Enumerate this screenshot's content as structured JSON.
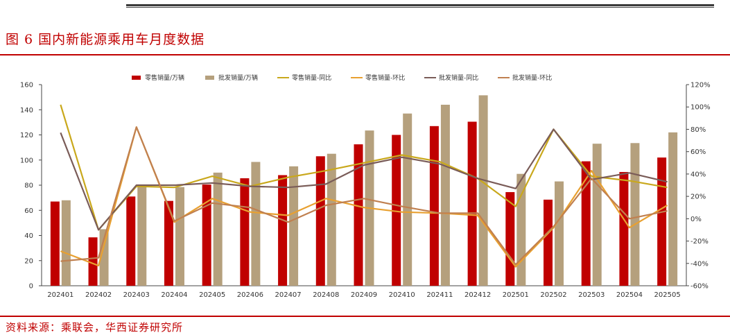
{
  "figure": {
    "title": "图 6 国内新能源乘用车月度数据",
    "source": "资料来源：乘联会，华西证券研究所"
  },
  "chart_data": {
    "type": "bar",
    "title": "",
    "categories": [
      "202401",
      "202402",
      "202403",
      "202404",
      "202405",
      "202406",
      "202407",
      "202408",
      "202409",
      "202410",
      "202411",
      "202412",
      "202501",
      "202502",
      "202503",
      "202504",
      "202505"
    ],
    "y_left": {
      "min": 0,
      "max": 160,
      "ticks": [
        0,
        20,
        40,
        60,
        80,
        100,
        120,
        140,
        160
      ]
    },
    "y_right": {
      "min": -60,
      "max": 120,
      "ticks": [
        -60,
        -40,
        -20,
        0,
        20,
        40,
        60,
        80,
        100,
        120
      ],
      "unit": "%"
    },
    "bar_series": [
      {
        "name": "零售销量/万辆",
        "color": "#c00000",
        "values": [
          67,
          38.5,
          71,
          67.5,
          80.5,
          85.5,
          88,
          103,
          112.5,
          120,
          127,
          130.5,
          74.5,
          68.5,
          99,
          90.5,
          102
        ]
      },
      {
        "name": "批发销量/万辆",
        "color": "#b5a07d",
        "values": [
          68,
          45,
          80.5,
          78.5,
          90,
          98.5,
          95,
          105,
          123.5,
          137,
          144,
          151.5,
          89,
          83,
          113,
          113.5,
          122
        ]
      }
    ],
    "line_series": [
      {
        "name": "零售销量-同比",
        "color": "#c9a81c",
        "values": [
          102,
          -10,
          29,
          28,
          38,
          29,
          37,
          43,
          50,
          57,
          51,
          36,
          11,
          80,
          38,
          34,
          28
        ]
      },
      {
        "name": "零售销量-环比",
        "color": "#e8a030",
        "values": [
          -29,
          -42,
          82,
          -3,
          18,
          6,
          3,
          18,
          10,
          6,
          5,
          3,
          -43,
          -8,
          43,
          -8,
          12
        ]
      },
      {
        "name": "批发销量-同比",
        "color": "#7a5c58",
        "values": [
          77,
          -10,
          30,
          30,
          32,
          29,
          28,
          31,
          48,
          55,
          49,
          36,
          27,
          80,
          35,
          41,
          33
        ]
      },
      {
        "name": "批发销量-环比",
        "color": "#c08050",
        "values": [
          -38,
          -35,
          82,
          -2,
          14,
          10,
          -3,
          12,
          18,
          11,
          5,
          5,
          -41,
          -7,
          36,
          0,
          7
        ]
      }
    ],
    "legend_position": "top",
    "grid": false
  }
}
